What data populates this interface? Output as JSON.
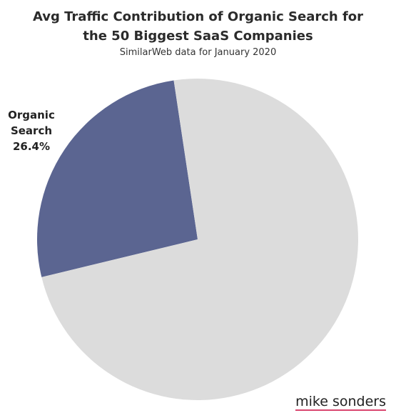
{
  "chart_data": {
    "type": "pie",
    "title": "Avg Traffic Contribution of Organic Search for the 50 Biggest SaaS Companies",
    "subtitle": "SimilarWeb data for January 2020",
    "categories": [
      "Organic Search",
      null
    ],
    "values": [
      26.4,
      73.6
    ],
    "value_labels": [
      "26.4%",
      null
    ],
    "colors": [
      "#5b6591",
      "#dcdcdc"
    ]
  },
  "brand": "mike sonders"
}
